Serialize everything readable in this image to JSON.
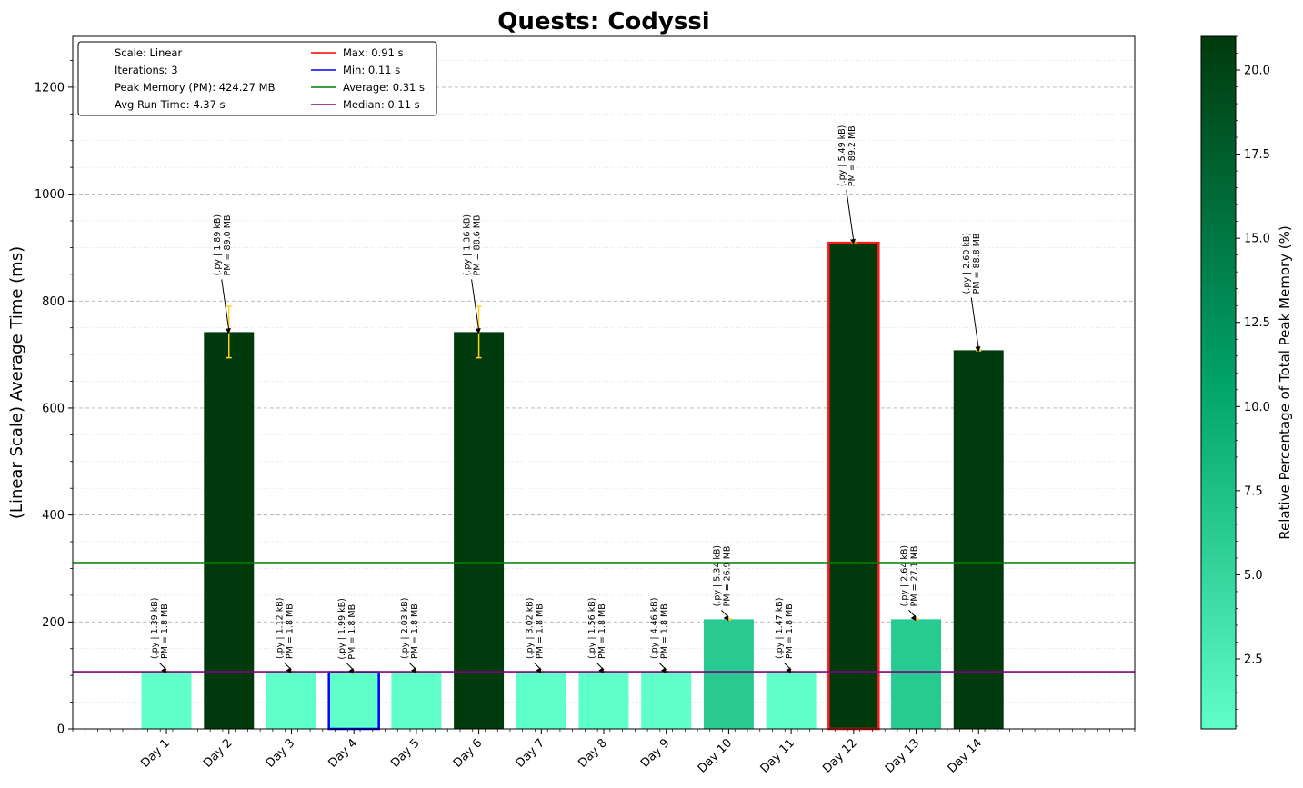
{
  "chart_data": {
    "type": "bar",
    "title": "Quests: Codyssi",
    "xlabel": "",
    "ylabel": "(Linear Scale) Average Time (ms)",
    "ylim": [
      0,
      1295
    ],
    "y_ticks": [
      0,
      200,
      400,
      600,
      800,
      1000,
      1200
    ],
    "grid": true,
    "categories": [
      "Day 1",
      "Day 2",
      "Day 3",
      "Day 4",
      "Day 5",
      "Day 6",
      "Day 7",
      "Day 8",
      "Day 9",
      "Day 10",
      "Day 11",
      "Day 12",
      "Day 13",
      "Day 14"
    ],
    "values": [
      107,
      742,
      107,
      106,
      107,
      742,
      107,
      107,
      107,
      205,
      107,
      909,
      205,
      708
    ],
    "errors": [
      1,
      48,
      1,
      1,
      1,
      48,
      1,
      1,
      1,
      1,
      1,
      2,
      1,
      1
    ],
    "memory_pct": [
      0.42,
      20.98,
      0.42,
      0.42,
      0.42,
      20.88,
      0.42,
      0.42,
      0.42,
      6.34,
      0.42,
      21.02,
      6.39,
      20.93
    ],
    "annotations": [
      {
        "line1": "(.py | 1.39 kB)",
        "line2": "PM = 1.8 MB"
      },
      {
        "line1": "(.py | 1.89 kB)",
        "line2": "PM = 89.0 MB"
      },
      {
        "line1": "(.py | 1.12 kB)",
        "line2": "PM = 1.8 MB"
      },
      {
        "line1": "(.py | 1.99 kB)",
        "line2": "PM = 1.8 MB"
      },
      {
        "line1": "(.py | 2.03 kB)",
        "line2": "PM = 1.8 MB"
      },
      {
        "line1": "(.py | 1.36 kB)",
        "line2": "PM = 88.6 MB"
      },
      {
        "line1": "(.py | 3.02 kB)",
        "line2": "PM = 1.8 MB"
      },
      {
        "line1": "(.py | 1.56 kB)",
        "line2": "PM = 1.8 MB"
      },
      {
        "line1": "(.py | 4.46 kB)",
        "line2": "PM = 1.8 MB"
      },
      {
        "line1": "(.py | 5.34 kB)",
        "line2": "PM = 26.9 MB"
      },
      {
        "line1": "(.py | 1.47 kB)",
        "line2": "PM = 1.8 MB"
      },
      {
        "line1": "(.py | 5.49 kB)",
        "line2": "PM = 89.2 MB"
      },
      {
        "line1": "(.py | 2.64 kB)",
        "line2": "PM = 27.1 MB"
      },
      {
        "line1": "(.py | 2.60 kB)",
        "line2": "PM = 88.8 MB"
      }
    ],
    "max_index": 11,
    "min_index": 3,
    "average_ms": 311,
    "median_ms": 107,
    "legend": {
      "placement": "upper-left",
      "info": [
        "Scale: Linear",
        "Iterations: 3",
        "Peak Memory (PM): 424.27 MB",
        "Avg Run Time: 4.37 s"
      ],
      "lines": [
        {
          "label": "Max: 0.91 s",
          "color": "#ff0000"
        },
        {
          "label": "Min: 0.11 s",
          "color": "#0000ff"
        },
        {
          "label": "Average: 0.31 s",
          "color": "#008000"
        },
        {
          "label": "Median: 0.11 s",
          "color": "#800080"
        }
      ]
    },
    "colorbar": {
      "label": "Relative Percentage of Total Peak Memory (%)",
      "range": [
        0.42,
        21.0
      ],
      "ticks": [
        2.5,
        5.0,
        7.5,
        10.0,
        12.5,
        15.0,
        17.5,
        20.0
      ],
      "colors": [
        "#5effc8",
        "#00a36a",
        "#003a0c"
      ]
    },
    "colors": {
      "error_bar": "#ffd21f",
      "grid": "#b0b0b0"
    }
  }
}
